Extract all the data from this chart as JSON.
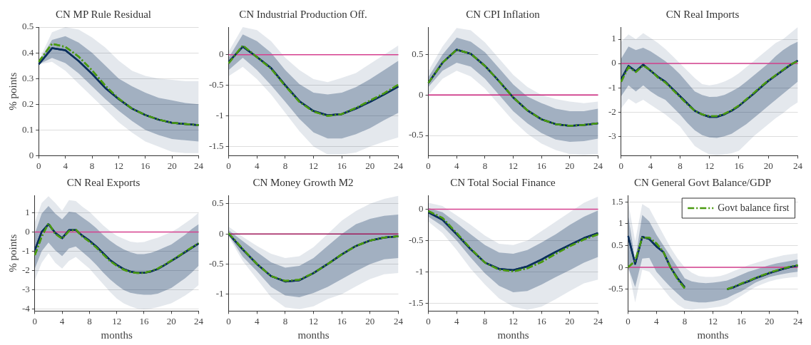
{
  "chart_data": [
    {
      "type": "line",
      "title": "CN MP Rule Residual",
      "ylabel": "% points",
      "x": [
        0,
        2,
        4,
        6,
        8,
        10,
        12,
        14,
        16,
        18,
        20,
        22,
        24
      ],
      "xlim": [
        0,
        24
      ],
      "xticks": [
        0,
        4,
        8,
        12,
        16,
        20,
        24
      ],
      "ylim": [
        0,
        0.5
      ],
      "yticks": [
        0,
        0.1,
        0.2,
        0.3,
        0.4,
        0.5
      ],
      "grid": "y",
      "series": [
        {
          "color": "#0b2f5c",
          "values": [
            0.355,
            0.418,
            0.41,
            0.368,
            0.318,
            0.263,
            0.22,
            0.183,
            0.158,
            0.14,
            0.128,
            0.123,
            0.119
          ],
          "lower": [
            0.355,
            0.38,
            0.36,
            0.32,
            0.27,
            0.22,
            0.175,
            0.135,
            0.1,
            0.08,
            0.065,
            0.06,
            0.055
          ],
          "upper": [
            0.365,
            0.45,
            0.465,
            0.44,
            0.4,
            0.35,
            0.3,
            0.27,
            0.245,
            0.225,
            0.215,
            0.205,
            0.2
          ]
        },
        {
          "color": "#4a9a10",
          "line_style": "dashed",
          "values": [
            0.365,
            0.435,
            0.423,
            0.385,
            0.332,
            0.272,
            0.222,
            0.183,
            0.158,
            0.14,
            0.128,
            0.123,
            0.119
          ],
          "lower": [
            0.355,
            0.365,
            0.33,
            0.28,
            0.23,
            0.18,
            0.13,
            0.09,
            0.055,
            0.035,
            0.015,
            0.01,
            0.01
          ],
          "upper": [
            0.37,
            0.48,
            0.5,
            0.49,
            0.46,
            0.42,
            0.37,
            0.33,
            0.31,
            0.3,
            0.295,
            0.29,
            0.29
          ]
        }
      ]
    },
    {
      "type": "line",
      "title": "CN Industrial Production Off.",
      "x": [
        0,
        2,
        4,
        6,
        8,
        10,
        12,
        14,
        16,
        18,
        20,
        22,
        24
      ],
      "xlim": [
        0,
        24
      ],
      "xticks": [
        0,
        4,
        8,
        12,
        16,
        20,
        24
      ],
      "ylim": [
        -1.65,
        0.45
      ],
      "yticks": [
        -1.5,
        -1,
        -0.5,
        0
      ],
      "grid": "y",
      "ref_lines": [
        {
          "axis": "y",
          "value": 0,
          "color": "#d6408f"
        }
      ],
      "series": [
        {
          "color": "#0b2f5c",
          "values": [
            -0.12,
            0.13,
            -0.04,
            -0.22,
            -0.5,
            -0.76,
            -0.92,
            -0.99,
            -0.97,
            -0.88,
            -0.77,
            -0.65,
            -0.52
          ],
          "lower": [
            -0.25,
            -0.05,
            -0.25,
            -0.5,
            -0.77,
            -1.05,
            -1.27,
            -1.37,
            -1.37,
            -1.3,
            -1.2,
            -1.07,
            -0.95
          ],
          "upper": [
            -0.05,
            0.33,
            0.22,
            0.03,
            -0.25,
            -0.48,
            -0.62,
            -0.65,
            -0.62,
            -0.53,
            -0.4,
            -0.25,
            -0.1
          ]
        },
        {
          "color": "#4a9a10",
          "line_style": "dashed",
          "values": [
            -0.14,
            0.15,
            -0.04,
            -0.23,
            -0.51,
            -0.77,
            -0.93,
            -1,
            -0.97,
            -0.87,
            -0.75,
            -0.63,
            -0.49
          ],
          "lower": [
            -0.35,
            -0.2,
            -0.4,
            -0.65,
            -0.95,
            -1.25,
            -1.5,
            -1.63,
            -1.63,
            -1.6,
            -1.5,
            -1.42,
            -1.35
          ],
          "upper": [
            0.05,
            0.45,
            0.4,
            0.22,
            -0.05,
            -0.25,
            -0.4,
            -0.45,
            -0.38,
            -0.3,
            -0.15,
            0,
            0.15
          ]
        }
      ]
    },
    {
      "type": "line",
      "title": "CN CPI Inflation",
      "x": [
        0,
        2,
        4,
        6,
        8,
        10,
        12,
        14,
        16,
        18,
        20,
        22,
        24
      ],
      "xlim": [
        0,
        24
      ],
      "xticks": [
        0,
        4,
        8,
        12,
        16,
        20,
        24
      ],
      "ylim": [
        -0.75,
        0.84
      ],
      "yticks": [
        -0.5,
        0,
        0.5
      ],
      "grid": "y",
      "ref_lines": [
        {
          "axis": "y",
          "value": 0,
          "color": "#c81e78"
        }
      ],
      "series": [
        {
          "color": "#0b2f5c",
          "values": [
            0.15,
            0.4,
            0.56,
            0.51,
            0.36,
            0.17,
            -0.03,
            -0.19,
            -0.3,
            -0.36,
            -0.38,
            -0.37,
            -0.35
          ],
          "lower": [
            0.1,
            0.3,
            0.4,
            0.35,
            0.2,
            0,
            -0.2,
            -0.35,
            -0.47,
            -0.55,
            -0.58,
            -0.57,
            -0.54
          ],
          "upper": [
            0.22,
            0.5,
            0.71,
            0.66,
            0.53,
            0.33,
            0.13,
            -0.02,
            -0.1,
            -0.17,
            -0.2,
            -0.2,
            -0.17
          ]
        },
        {
          "color": "#4a9a10",
          "line_style": "dashed",
          "values": [
            0.15,
            0.4,
            0.56,
            0.51,
            0.36,
            0.17,
            -0.03,
            -0.19,
            -0.3,
            -0.36,
            -0.38,
            -0.37,
            -0.35
          ],
          "lower": [
            0,
            0.2,
            0.3,
            0.23,
            0.08,
            -0.12,
            -0.32,
            -0.48,
            -0.6,
            -0.68,
            -0.73,
            -0.74,
            -0.73
          ],
          "upper": [
            0.3,
            0.6,
            0.83,
            0.8,
            0.65,
            0.45,
            0.25,
            0.1,
            0,
            -0.05,
            -0.08,
            -0.1,
            -0.08
          ]
        }
      ]
    },
    {
      "type": "line",
      "title": "CN Real Imports",
      "x": [
        0,
        1,
        2,
        3,
        4,
        5,
        6,
        7,
        8,
        9,
        10,
        11,
        12,
        13,
        14,
        15,
        16,
        17,
        18,
        19,
        20,
        21,
        22,
        23,
        24
      ],
      "xlim": [
        0,
        24
      ],
      "xticks": [
        0,
        4,
        8,
        12,
        16,
        20,
        24
      ],
      "ylim": [
        -3.8,
        1.5
      ],
      "yticks": [
        -3,
        -2,
        -1,
        0,
        1
      ],
      "grid": "y",
      "ref_lines": [
        {
          "axis": "y",
          "value": 0,
          "color": "#d6408f"
        }
      ],
      "series": [
        {
          "color": "#0b2f5c",
          "values": [
            -0.65,
            -0.1,
            -0.32,
            -0.05,
            -0.3,
            -0.55,
            -0.75,
            -1.05,
            -1.35,
            -1.65,
            -1.95,
            -2.1,
            -2.2,
            -2.2,
            -2.1,
            -1.95,
            -1.75,
            -1.5,
            -1.25,
            -0.98,
            -0.72,
            -0.5,
            -0.28,
            -0.06,
            0.12
          ],
          "lower": [
            -1.35,
            -0.9,
            -1.15,
            -0.9,
            -1.15,
            -1.35,
            -1.5,
            -1.8,
            -2.1,
            -2.45,
            -2.75,
            -2.95,
            -3.05,
            -3.07,
            -3,
            -2.9,
            -2.7,
            -2.5,
            -2.25,
            -2,
            -1.75,
            -1.5,
            -1.25,
            -1,
            -0.75
          ],
          "upper": [
            0.2,
            0.7,
            0.55,
            0.65,
            0.5,
            0.3,
            0.1,
            -0.15,
            -0.45,
            -0.8,
            -1.15,
            -1.3,
            -1.38,
            -1.37,
            -1.3,
            -1.15,
            -0.98,
            -0.75,
            -0.5,
            -0.25,
            0,
            0.3,
            0.55,
            0.75,
            0.9
          ]
        },
        {
          "color": "#4a9a10",
          "line_style": "dashed",
          "values": [
            -0.75,
            -0.15,
            -0.35,
            -0.08,
            -0.28,
            -0.58,
            -0.78,
            -1.08,
            -1.38,
            -1.68,
            -1.95,
            -2.1,
            -2.17,
            -2.17,
            -2.08,
            -1.93,
            -1.73,
            -1.48,
            -1.22,
            -0.95,
            -0.7,
            -0.48,
            -0.26,
            -0.04,
            0.1
          ],
          "lower": [
            -1.85,
            -1.45,
            -1.65,
            -1.5,
            -1.7,
            -1.9,
            -2.1,
            -2.35,
            -2.6,
            -3,
            -3.4,
            -3.6,
            -3.75,
            -3.78,
            -3.75,
            -3.7,
            -3.6,
            -3.3,
            -3,
            -2.75,
            -2.5,
            -2.25,
            -2.05,
            -1.8,
            -1.6
          ],
          "upper": [
            0.9,
            1.2,
            1,
            1.25,
            1.05,
            0.85,
            0.6,
            0.3,
            0,
            -0.3,
            -0.6,
            -0.85,
            -0.9,
            -0.85,
            -0.75,
            -0.6,
            -0.4,
            -0.15,
            0.1,
            0.35,
            0.6,
            0.85,
            1,
            1.25,
            1.5
          ]
        }
      ]
    },
    {
      "type": "line",
      "title": "CN Real Exports",
      "xlabel": "months",
      "ylabel": "% points",
      "x": [
        0,
        1,
        2,
        3,
        4,
        5,
        6,
        7,
        8,
        9,
        10,
        11,
        12,
        13,
        14,
        15,
        16,
        17,
        18,
        19,
        20,
        21,
        22,
        23,
        24
      ],
      "xlim": [
        0,
        24
      ],
      "xticks": [
        0,
        4,
        8,
        12,
        16,
        20,
        24
      ],
      "ylim": [
        -4.1,
        1.9
      ],
      "yticks": [
        -4,
        -3,
        -2,
        -1,
        0,
        1
      ],
      "grid": "y",
      "ref_lines": [
        {
          "axis": "y",
          "value": 0,
          "color": "#d6408f"
        }
      ],
      "series": [
        {
          "color": "#0b2f5c",
          "values": [
            -0.95,
            0,
            0.4,
            -0.05,
            -0.32,
            0.1,
            0.1,
            -0.2,
            -0.45,
            -0.75,
            -1.1,
            -1.45,
            -1.7,
            -1.92,
            -2.05,
            -2.12,
            -2.12,
            -2.05,
            -1.92,
            -1.72,
            -1.5,
            -1.28,
            -1.05,
            -0.82,
            -0.6
          ],
          "lower": [
            -1.9,
            -1,
            -0.55,
            -0.95,
            -1.25,
            -0.85,
            -0.75,
            -1.05,
            -1.35,
            -1.7,
            -2.1,
            -2.45,
            -2.75,
            -3,
            -3.15,
            -3.22,
            -3.25,
            -3.25,
            -3.2,
            -3.05,
            -2.9,
            -2.65,
            -2.4,
            -2.1,
            -1.75
          ],
          "upper": [
            -0.1,
            0.95,
            1.35,
            0.95,
            0.65,
            1.05,
            1,
            0.75,
            0.5,
            0.2,
            -0.15,
            -0.45,
            -0.7,
            -0.9,
            -1.05,
            -1.15,
            -1.15,
            -1.08,
            -0.95,
            -0.8,
            -0.65,
            -0.4,
            -0.15,
            0.15,
            0.4
          ]
        },
        {
          "color": "#4a9a10",
          "line_style": "dashed",
          "values": [
            -1.2,
            -0.25,
            0.45,
            -0.1,
            -0.35,
            0.05,
            0.12,
            -0.25,
            -0.5,
            -0.8,
            -1.15,
            -1.5,
            -1.75,
            -1.95,
            -2.08,
            -2.13,
            -2.12,
            -2.03,
            -1.9,
            -1.7,
            -1.48,
            -1.26,
            -1.03,
            -0.8,
            -0.58
          ],
          "lower": [
            -2.5,
            -1.6,
            -1.1,
            -1.6,
            -1.9,
            -1.5,
            -1.3,
            -1.6,
            -1.9,
            -2.3,
            -2.7,
            -3.1,
            -3.45,
            -3.7,
            -3.85,
            -3.97,
            -4,
            -3.97,
            -3.9,
            -3.8,
            -3.7,
            -3.5,
            -3.3,
            -3.05,
            -2.75
          ],
          "upper": [
            0.5,
            1.5,
            1.85,
            1.5,
            1.1,
            1.65,
            1.6,
            1.3,
            1.05,
            0.7,
            0.35,
            0.05,
            -0.2,
            -0.35,
            -0.5,
            -0.55,
            -0.52,
            -0.4,
            -0.3,
            -0.15,
            0,
            0.2,
            0.45,
            0.7,
            1
          ]
        }
      ]
    },
    {
      "type": "line",
      "title": "CN Money Growth M2",
      "xlabel": "months",
      "x": [
        0,
        2,
        4,
        6,
        8,
        10,
        12,
        14,
        16,
        18,
        20,
        22,
        24
      ],
      "xlim": [
        0,
        24
      ],
      "xticks": [
        0,
        4,
        8,
        12,
        16,
        20,
        24
      ],
      "ylim": [
        -1.28,
        0.64
      ],
      "yticks": [
        -1,
        -0.5,
        0,
        0.5
      ],
      "grid": "y",
      "ref_lines": [
        {
          "axis": "y",
          "value": 0,
          "color": "#a01a5c"
        }
      ],
      "series": [
        {
          "color": "#0b2f5c",
          "values": [
            0,
            -0.26,
            -0.5,
            -0.7,
            -0.79,
            -0.77,
            -0.65,
            -0.5,
            -0.34,
            -0.2,
            -0.11,
            -0.06,
            -0.04
          ],
          "lower": [
            -0.02,
            -0.38,
            -0.62,
            -0.88,
            -1.02,
            -1.05,
            -0.98,
            -0.88,
            -0.75,
            -0.62,
            -0.5,
            -0.42,
            -0.4
          ],
          "upper": [
            0.06,
            -0.12,
            -0.3,
            -0.47,
            -0.56,
            -0.53,
            -0.4,
            -0.2,
            0,
            0.16,
            0.25,
            0.3,
            0.32
          ]
        },
        {
          "color": "#4a9a10",
          "line_style": "dashed",
          "values": [
            0.01,
            -0.25,
            -0.5,
            -0.7,
            -0.78,
            -0.76,
            -0.65,
            -0.5,
            -0.34,
            -0.2,
            -0.11,
            -0.06,
            -0.04
          ],
          "lower": [
            -0.05,
            -0.45,
            -0.75,
            -1.05,
            -1.22,
            -1.25,
            -1.2,
            -1.08,
            -1,
            -0.87,
            -0.75,
            -0.67,
            -0.65
          ],
          "upper": [
            0.12,
            -0.05,
            -0.2,
            -0.33,
            -0.4,
            -0.37,
            -0.22,
            0,
            0.22,
            0.38,
            0.5,
            0.58,
            0.63
          ]
        }
      ]
    },
    {
      "type": "line",
      "title": "CN Total Social Finance",
      "xlabel": "months",
      "x": [
        0,
        2,
        4,
        6,
        8,
        10,
        12,
        14,
        16,
        18,
        20,
        22,
        24
      ],
      "xlim": [
        0,
        24
      ],
      "xticks": [
        0,
        4,
        8,
        12,
        16,
        20,
        24
      ],
      "ylim": [
        -1.62,
        0.22
      ],
      "yticks": [
        -1.5,
        -1,
        -0.5,
        0
      ],
      "grid": "y",
      "ref_lines": [
        {
          "axis": "y",
          "value": 0,
          "color": "#d6408f"
        }
      ],
      "series": [
        {
          "color": "#0b2f5c",
          "values": [
            -0.05,
            -0.17,
            -0.4,
            -0.64,
            -0.85,
            -0.95,
            -0.97,
            -0.91,
            -0.8,
            -0.68,
            -0.57,
            -0.46,
            -0.38
          ],
          "lower": [
            -0.12,
            -0.27,
            -0.5,
            -0.77,
            -1.02,
            -1.22,
            -1.32,
            -1.3,
            -1.2,
            -1.08,
            -0.97,
            -0.85,
            -0.76
          ],
          "upper": [
            0.02,
            -0.05,
            -0.22,
            -0.4,
            -0.57,
            -0.69,
            -0.71,
            -0.65,
            -0.53,
            -0.4,
            -0.25,
            -0.12,
            -0.02
          ]
        },
        {
          "color": "#4a9a10",
          "line_style": "dashed",
          "values": [
            -0.03,
            -0.14,
            -0.38,
            -0.63,
            -0.85,
            -0.96,
            -0.99,
            -0.94,
            -0.84,
            -0.71,
            -0.59,
            -0.48,
            -0.4
          ],
          "lower": [
            -0.2,
            -0.38,
            -0.65,
            -0.95,
            -1.2,
            -1.42,
            -1.55,
            -1.6,
            -1.55,
            -1.43,
            -1.3,
            -1.18,
            -1.12
          ],
          "upper": [
            0.1,
            0.05,
            -0.1,
            -0.25,
            -0.42,
            -0.55,
            -0.57,
            -0.5,
            -0.35,
            -0.2,
            -0.05,
            0.1,
            0.2
          ]
        }
      ]
    },
    {
      "type": "line",
      "title": "CN General Govt Balance/GDP",
      "xlabel": "months",
      "x": [
        0,
        1,
        2,
        3,
        4,
        5,
        6,
        7,
        8,
        9,
        10,
        11,
        12,
        13,
        14,
        15,
        16,
        17,
        18,
        19,
        20,
        21,
        22,
        23,
        24
      ],
      "xlim": [
        0,
        24
      ],
      "xticks": [
        0,
        4,
        8,
        12,
        16,
        20,
        24
      ],
      "ylim": [
        -1,
        1.65
      ],
      "yticks": [
        -0.5,
        0,
        0.5,
        1,
        1.5
      ],
      "grid": "y",
      "legend": "top right",
      "ref_lines": [
        {
          "axis": "y",
          "value": 0,
          "color": "#d6408f"
        }
      ],
      "series": [
        {
          "color": "#0b2f5c",
          "values": [
            0.72,
            0.08,
            0.7,
            0.65,
            0.48,
            0.35,
            0,
            -0.25,
            -0.45,
            null,
            null,
            null,
            null,
            null,
            -0.5,
            -0.45,
            -0.38,
            -0.32,
            -0.25,
            -0.19,
            -0.13,
            -0.08,
            -0.03,
            0.01,
            0.04
          ],
          "lower": [
            0,
            -0.45,
            0.2,
            0.22,
            -0.1,
            -0.28,
            -0.45,
            -0.6,
            -0.75,
            -0.78,
            -0.8,
            -0.8,
            -0.78,
            -0.75,
            -0.7,
            -0.62,
            -0.55,
            -0.45,
            -0.35,
            -0.28,
            -0.22,
            -0.18,
            -0.15,
            -0.12,
            -0.1
          ],
          "upper": [
            1.2,
            0.15,
            1.2,
            1.05,
            0.75,
            0.5,
            0.25,
            0,
            -0.25,
            -0.32,
            -0.35,
            -0.36,
            -0.35,
            -0.33,
            -0.3,
            -0.24,
            -0.17,
            -0.1,
            -0.05,
            0,
            0.05,
            0.09,
            0.12,
            0.15,
            0.18
          ]
        },
        {
          "name": "Govt balance first",
          "color": "#4a9a10",
          "line_style": "dashed",
          "values": [
            0,
            0.15,
            0.68,
            0.68,
            0.55,
            0.35,
            0,
            -0.27,
            -0.48,
            null,
            null,
            null,
            null,
            null,
            -0.5,
            -0.44,
            -0.37,
            -0.31,
            -0.24,
            -0.18,
            -0.12,
            -0.07,
            -0.02,
            0.02,
            0.05
          ],
          "lower": [
            0,
            -0.8,
            -0.05,
            -0.1,
            -0.3,
            -0.5,
            -0.7,
            -0.85,
            -0.95,
            -0.97,
            -0.95,
            -0.94,
            -0.92,
            -0.9,
            -0.85,
            -0.75,
            -0.65,
            -0.55,
            -0.45,
            -0.38,
            -0.32,
            -0.28,
            -0.25,
            -0.23,
            -0.22
          ],
          "upper": [
            1.5,
            0.6,
            1.45,
            1.35,
            1.05,
            0.75,
            0.45,
            0.2,
            0,
            -0.12,
            -0.2,
            -0.22,
            -0.22,
            -0.2,
            -0.15,
            -0.08,
            -0.02,
            0.05,
            0.1,
            0.15,
            0.2,
            0.24,
            0.28,
            0.3,
            0.32
          ]
        }
      ]
    }
  ]
}
